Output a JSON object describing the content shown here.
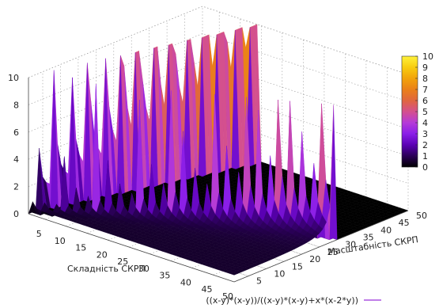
{
  "chart_data": {
    "type": "surface",
    "title": "",
    "xlabel": "Складність СКРП",
    "ylabel": "Масштабність СКРП",
    "zlabel": "",
    "x_ticks": [
      5,
      10,
      15,
      20,
      25,
      30,
      35,
      40,
      45,
      50
    ],
    "y_ticks": [
      5,
      10,
      15,
      20,
      25,
      30,
      35,
      40,
      45,
      50
    ],
    "z_ticks": [
      0,
      2,
      4,
      6,
      8,
      10
    ],
    "xlim": [
      1,
      50
    ],
    "ylim": [
      1,
      50
    ],
    "zlim": [
      0,
      10
    ],
    "series": [
      {
        "name": "((x-y)*(x-y))/((x-y)*(x-y)+x*(x-2*y))",
        "color": "#9b30d9"
      }
    ],
    "colorbar": {
      "ticks": [
        0,
        1,
        2,
        3,
        4,
        5,
        6,
        7,
        8,
        9,
        10
      ],
      "range": [
        0,
        10
      ],
      "palette": [
        "#000000",
        "#2a0057",
        "#5b00b5",
        "#8a1ee8",
        "#b53ad8",
        "#d4508e",
        "#e0663f",
        "#ea8019",
        "#f2a30a",
        "#f8cc0f",
        "#fff23a"
      ]
    },
    "grid": true,
    "legend_position": "bottom-right"
  }
}
